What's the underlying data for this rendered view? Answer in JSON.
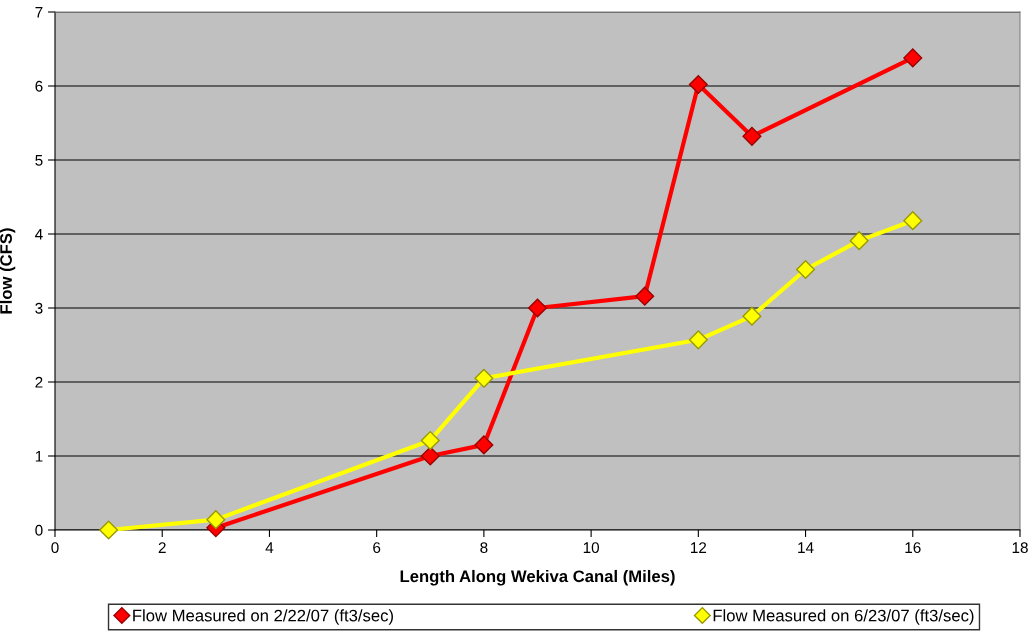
{
  "chart_data": {
    "type": "line",
    "xlabel": "Length Along Wekiva Canal (Miles)",
    "ylabel": "Flow (CFS)",
    "series": [
      {
        "name": "Flow Measured on 2/22/07 (ft3/sec)",
        "color": "#ff0000",
        "x": [
          3,
          7,
          8,
          9,
          11,
          12,
          13,
          16
        ],
        "values": [
          0.03,
          1.0,
          1.15,
          3.0,
          3.16,
          6.02,
          5.32,
          6.38
        ]
      },
      {
        "name": "Flow Measured on 6/23/07 (ft3/sec)",
        "color": "#ffff00",
        "x": [
          1,
          3,
          7,
          8,
          12,
          13,
          14,
          15,
          16
        ],
        "values": [
          0.0,
          0.14,
          1.21,
          2.05,
          2.57,
          2.89,
          3.52,
          3.91,
          4.18
        ]
      }
    ],
    "xlim": [
      0,
      18
    ],
    "xticks": [
      0,
      2,
      4,
      6,
      8,
      10,
      12,
      14,
      16,
      18
    ],
    "ylim": [
      0,
      7
    ],
    "yticks": [
      0,
      1,
      2,
      3,
      4,
      5,
      6,
      7
    ],
    "grid": "y",
    "legend": "bottom",
    "marker": "diamond",
    "line_style": "solid"
  }
}
